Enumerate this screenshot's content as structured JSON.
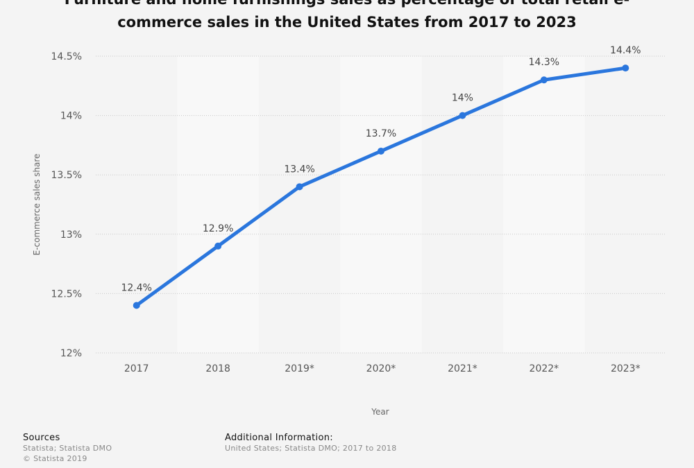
{
  "chart_data": {
    "type": "line",
    "title_lines": [
      "Furniture and home furnishings sales as percentage of total retail e-",
      "commerce sales in the United States from 2017 to 2023"
    ],
    "xlabel": "Year",
    "ylabel": "E-commerce sales share",
    "categories": [
      "2017",
      "2018",
      "2019*",
      "2020*",
      "2021*",
      "2022*",
      "2023*"
    ],
    "series": [
      {
        "name": "E-commerce sales share",
        "values": [
          12.4,
          12.9,
          13.4,
          13.7,
          14.0,
          14.3,
          14.4
        ],
        "labels": [
          "12.4%",
          "12.9%",
          "13.4%",
          "13.7%",
          "14%",
          "14.3%",
          "14.4%"
        ]
      }
    ],
    "ylim": [
      12,
      14.5
    ],
    "yticks": [
      12,
      12.5,
      13,
      13.5,
      14,
      14.5
    ],
    "ytick_labels": [
      "12%",
      "12.5%",
      "13%",
      "13.5%",
      "14%",
      "14.5%"
    ],
    "grid": true,
    "colors": {
      "line": "#2a76dd",
      "band_light": "#f8f8f8",
      "background": "#f4f4f4",
      "grid": "#c8c8c8"
    }
  },
  "footer": {
    "sources_heading": "Sources",
    "sources_lines": [
      "Statista; Statista DMO",
      "© Statista 2019"
    ],
    "additional_heading": "Additional Information:",
    "additional_text": "United States; Statista DMO; 2017 to 2018"
  }
}
